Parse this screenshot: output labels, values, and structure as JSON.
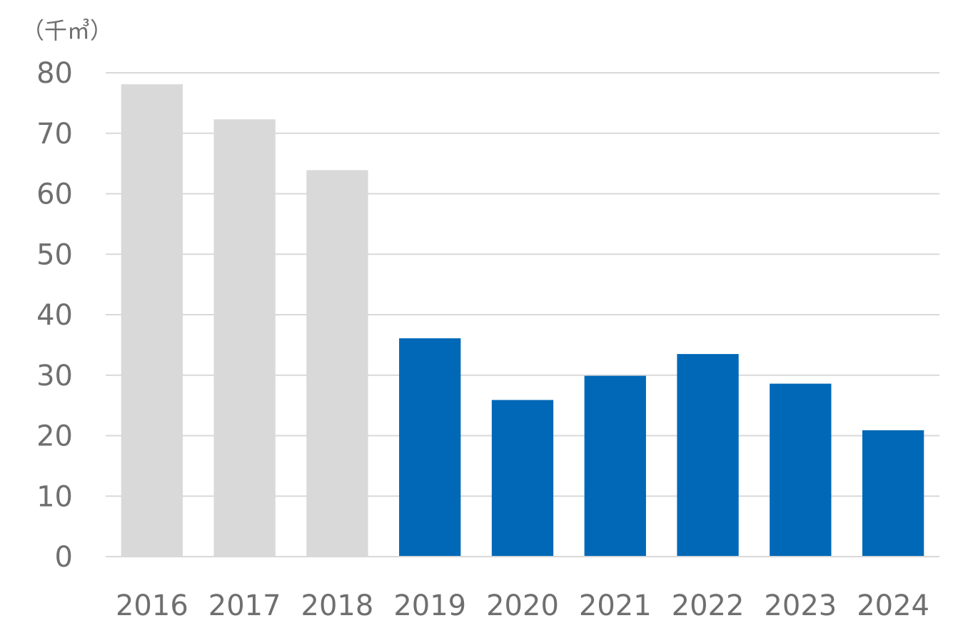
{
  "chart_data": {
    "type": "bar",
    "unit_label": "（千㎥）",
    "categories": [
      "2016",
      "2017",
      "2018",
      "2019",
      "2020",
      "2021",
      "2022",
      "2023",
      "2024"
    ],
    "values": [
      78.1,
      72.3,
      63.9,
      36.1,
      25.9,
      29.9,
      33.5,
      28.6,
      20.9
    ],
    "bar_colors": [
      "#d9d9d9",
      "#d9d9d9",
      "#d9d9d9",
      "#0068b7",
      "#0068b7",
      "#0068b7",
      "#0068b7",
      "#0068b7",
      "#0068b7"
    ],
    "ylim": [
      0,
      80
    ],
    "yticks": [
      0,
      10,
      20,
      30,
      40,
      50,
      60,
      70,
      80
    ],
    "grid": true,
    "legend": "none",
    "colors": {
      "gridline": "#d9d9d9",
      "text": "#6f6f6f"
    }
  }
}
